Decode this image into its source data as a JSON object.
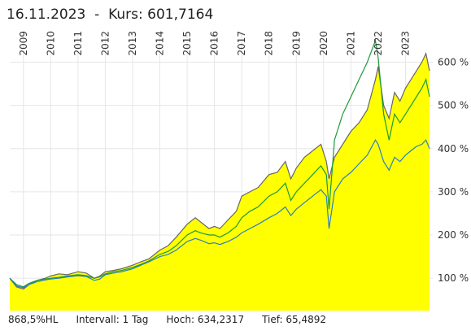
{
  "header": {
    "date": "16.11.2023",
    "separator": "-",
    "price_label": "Kurs: 601,7164"
  },
  "footer": {
    "range": "868,5%HL",
    "interval": "Intervall: 1 Tag",
    "high": "Hoch: 634,2317",
    "low": "Tief: 65,4892"
  },
  "chart_data": {
    "type": "area",
    "x_ticks": [
      "2009",
      "2010",
      "2011",
      "2012",
      "2013",
      "2014",
      "2015",
      "2016",
      "2017",
      "2018",
      "2019",
      "2020",
      "2021",
      "2022",
      "2023"
    ],
    "y_ticks": [
      {
        "value": 100,
        "label": "100 %"
      },
      {
        "value": 200,
        "label": "200 %"
      },
      {
        "value": 300,
        "label": "300 %"
      },
      {
        "value": 400,
        "label": "400 %"
      },
      {
        "value": 500,
        "label": "500 %"
      },
      {
        "value": 600,
        "label": "600 %"
      }
    ],
    "xlim": [
      2008.5,
      2024.0
    ],
    "ylim": [
      25,
      665
    ],
    "grid": true,
    "x_tick_position": "top",
    "y_tick_position": "right",
    "colors": {
      "area_fill": "#ffff00",
      "area_edge": "#666666",
      "green": "#1b9a3a",
      "blue": "#2a7fc0",
      "grid": "#e6e6e6"
    },
    "series": [
      {
        "style": "area-yellow",
        "x": [
          2008.5,
          2008.75,
          2009.0,
          2009.2,
          2009.5,
          2009.8,
          2010.0,
          2010.3,
          2010.6,
          2011.0,
          2011.3,
          2011.6,
          2011.8,
          2012.0,
          2012.3,
          2012.6,
          2013.0,
          2013.3,
          2013.6,
          2014.0,
          2014.3,
          2014.6,
          2015.0,
          2015.3,
          2015.5,
          2015.8,
          2016.0,
          2016.2,
          2016.5,
          2016.8,
          2017.0,
          2017.3,
          2017.6,
          2018.0,
          2018.3,
          2018.6,
          2018.8,
          2019.0,
          2019.3,
          2019.6,
          2019.9,
          2020.1,
          2020.2,
          2020.4,
          2020.7,
          2021.0,
          2021.3,
          2021.6,
          2021.9,
          2022.0,
          2022.2,
          2022.4,
          2022.6,
          2022.8,
          2023.0,
          2023.2,
          2023.4,
          2023.6,
          2023.75,
          2023.88
        ],
        "y": [
          100,
          80,
          75,
          85,
          95,
          100,
          105,
          110,
          108,
          115,
          112,
          100,
          105,
          115,
          118,
          122,
          130,
          138,
          145,
          165,
          175,
          195,
          225,
          240,
          230,
          215,
          220,
          215,
          235,
          255,
          290,
          300,
          310,
          340,
          345,
          370,
          330,
          355,
          380,
          395,
          410,
          370,
          330,
          380,
          410,
          440,
          460,
          490,
          560,
          590,
          500,
          470,
          530,
          510,
          540,
          560,
          580,
          600,
          620,
          580
        ]
      },
      {
        "style": "line-green",
        "x": [
          2008.5,
          2008.75,
          2009.0,
          2009.2,
          2009.5,
          2009.8,
          2010.0,
          2010.3,
          2010.6,
          2011.0,
          2011.3,
          2011.6,
          2011.8,
          2012.0,
          2012.3,
          2012.6,
          2013.0,
          2013.3,
          2013.6,
          2014.0,
          2014.3,
          2014.6,
          2015.0,
          2015.3,
          2015.5,
          2015.8,
          2016.0,
          2016.2,
          2016.5,
          2016.8,
          2017.0,
          2017.3,
          2017.6,
          2018.0,
          2018.3,
          2018.6,
          2018.8,
          2019.0,
          2019.3,
          2019.6,
          2019.9,
          2020.1,
          2020.2,
          2020.4,
          2020.7,
          2021.0,
          2021.3,
          2021.6,
          2021.9,
          2022.0,
          2022.2,
          2022.4,
          2022.6,
          2022.8,
          2023.0,
          2023.2,
          2023.4,
          2023.6,
          2023.75,
          2023.88
        ],
        "y": [
          100,
          85,
          80,
          88,
          95,
          98,
          100,
          102,
          105,
          108,
          106,
          100,
          103,
          110,
          115,
          118,
          125,
          132,
          140,
          155,
          162,
          175,
          200,
          210,
          205,
          200,
          200,
          195,
          205,
          220,
          240,
          255,
          265,
          290,
          300,
          320,
          280,
          300,
          320,
          340,
          360,
          340,
          260,
          420,
          480,
          520,
          560,
          600,
          650,
          610,
          480,
          420,
          480,
          460,
          480,
          500,
          520,
          540,
          560,
          520
        ]
      },
      {
        "style": "line-blue",
        "x": [
          2008.5,
          2008.75,
          2009.0,
          2009.2,
          2009.5,
          2009.8,
          2010.0,
          2010.3,
          2010.6,
          2011.0,
          2011.3,
          2011.6,
          2011.8,
          2012.0,
          2012.3,
          2012.6,
          2013.0,
          2013.3,
          2013.6,
          2014.0,
          2014.3,
          2014.6,
          2015.0,
          2015.3,
          2015.5,
          2015.8,
          2016.0,
          2016.2,
          2016.5,
          2016.8,
          2017.0,
          2017.3,
          2017.6,
          2018.0,
          2018.3,
          2018.6,
          2018.8,
          2019.0,
          2019.3,
          2019.6,
          2019.9,
          2020.1,
          2020.2,
          2020.4,
          2020.7,
          2021.0,
          2021.3,
          2021.6,
          2021.9,
          2022.0,
          2022.2,
          2022.4,
          2022.6,
          2022.8,
          2023.0,
          2023.2,
          2023.4,
          2023.6,
          2023.75,
          2023.88
        ],
        "y": [
          100,
          82,
          78,
          85,
          92,
          96,
          98,
          100,
          103,
          106,
          104,
          95,
          98,
          108,
          112,
          115,
          122,
          130,
          138,
          150,
          155,
          165,
          185,
          192,
          188,
          180,
          182,
          178,
          185,
          195,
          205,
          215,
          225,
          240,
          250,
          265,
          245,
          260,
          275,
          290,
          305,
          290,
          215,
          300,
          330,
          345,
          365,
          385,
          420,
          410,
          370,
          350,
          380,
          370,
          385,
          395,
          405,
          410,
          420,
          400
        ]
      }
    ]
  }
}
